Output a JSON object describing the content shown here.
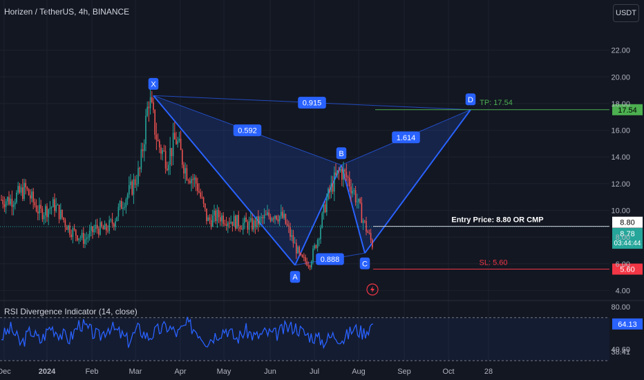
{
  "header": {
    "title": "Horizen / TetherUS, 4h, BINANCE",
    "currency_button": "USDT"
  },
  "rsi": {
    "title": "RSI Divergence Indicator (14, close)"
  },
  "colors": {
    "background": "#131722",
    "bull": "#26a69a",
    "bear": "#ef5350",
    "pattern": "#2962ff",
    "rsi_line": "#2962ff",
    "tp": "#4caf50",
    "sl": "#f23645"
  },
  "chart_data": [
    {
      "type": "candlestick",
      "title": "Horizen / TetherUS, 4h, BINANCE",
      "ylim": [
        3.4,
        24
      ],
      "price_axis_ticks": [
        "22.00",
        "20.00",
        "18.00",
        "16.00",
        "14.00",
        "12.00",
        "10.00",
        "8.00",
        "6.00",
        "4.00"
      ],
      "time_axis_ticks": [
        "Dec",
        "2024",
        "Feb",
        "Mar",
        "Apr",
        "May",
        "Jun",
        "Jul",
        "Aug",
        "Sep",
        "Oct",
        "28"
      ],
      "price_path_approx": [
        [
          "Dec",
          10.8
        ],
        [
          "Dec",
          11.6
        ],
        [
          "Dec",
          9.8
        ],
        [
          "2024",
          10.4
        ],
        [
          "2024",
          8.6
        ],
        [
          "2024",
          7.8
        ],
        [
          "Feb",
          8.7
        ],
        [
          "Feb",
          8.5
        ],
        [
          "Feb",
          9.2
        ],
        [
          "Feb",
          10.6
        ],
        [
          "Feb",
          11.6
        ],
        [
          "Mar",
          13.0
        ],
        [
          "Mar",
          18.5
        ],
        [
          "Mar",
          15.0
        ],
        [
          "Mar",
          13.8
        ],
        [
          "Mar",
          15.4
        ],
        [
          "Apr",
          13.0
        ],
        [
          "Apr",
          12.0
        ],
        [
          "Apr",
          9.2
        ],
        [
          "Apr",
          9.6
        ],
        [
          "May",
          9.3
        ],
        [
          "May",
          9.0
        ],
        [
          "May",
          8.9
        ],
        [
          "May",
          9.4
        ],
        [
          "Jun",
          9.8
        ],
        [
          "Jun",
          9.4
        ],
        [
          "Jun",
          7.8
        ],
        [
          "Jun",
          6.3
        ],
        [
          "Jun",
          6.1
        ],
        [
          "Jul",
          8.0
        ],
        [
          "Jul",
          10.5
        ],
        [
          "Jul",
          12.0
        ],
        [
          "Jul",
          13.0
        ],
        [
          "Jul",
          12.4
        ],
        [
          "Jul",
          11.2
        ],
        [
          "Aug",
          9.0
        ],
        [
          "Aug",
          6.8
        ],
        [
          "Aug",
          7.6
        ],
        [
          "Aug",
          8.78
        ]
      ],
      "harmonic_pattern": {
        "points": [
          {
            "label": "X",
            "date": "Mar",
            "price": 18.6
          },
          {
            "label": "A",
            "date": "Jun",
            "price": 5.9
          },
          {
            "label": "B",
            "date": "Jul",
            "price": 13.4
          },
          {
            "label": "C",
            "date": "Aug",
            "price": 6.8
          },
          {
            "label": "D",
            "date": "Oct",
            "price": 17.54
          }
        ],
        "ratios": [
          "0.592",
          "0.888",
          "1.614",
          "0.915"
        ]
      },
      "annotations": {
        "tp_text": "TP: 17.54",
        "tp_price": 17.54,
        "tp_tag": "17.54",
        "entry_text": "Entry Price: 8.80 OR CMP",
        "entry_price": 8.8,
        "entry_tag": "8.80",
        "current_price_tag": "8.78",
        "current_price": 8.78,
        "countdown_tag": "03:44:44",
        "sl_text": "SL: 5.60",
        "sl_price": 5.6,
        "sl_tag": "5.60",
        "bolt_icon": "bolt-icon"
      }
    },
    {
      "type": "line",
      "title": "RSI Divergence Indicator (14, close)",
      "ylim": [
        30,
        84
      ],
      "axis_ticks": [
        "80.00",
        "64.13",
        "40.60",
        "38.41"
      ],
      "levels": [
        70,
        30
      ],
      "values_approx": [
        52,
        60,
        45,
        58,
        48,
        62,
        55,
        50,
        65,
        58,
        52,
        62,
        56,
        48,
        60,
        52,
        58,
        62,
        55,
        64,
        58,
        48,
        55,
        60,
        50,
        58,
        52,
        56,
        54,
        60,
        62,
        55,
        52,
        48,
        54,
        50,
        60,
        56,
        64.13
      ],
      "current_value": 64.13
    }
  ]
}
